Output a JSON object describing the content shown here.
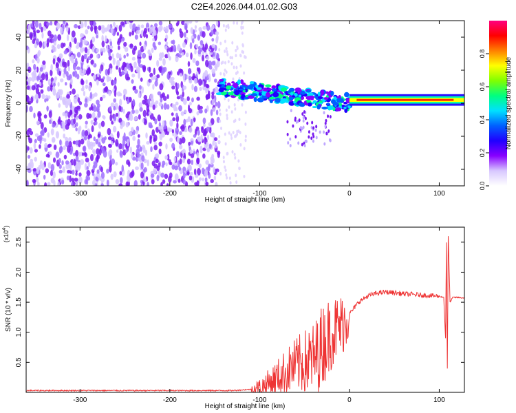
{
  "title": "C2E4.2026.044.01.02.G03",
  "chart_data": [
    {
      "type": "heatmap",
      "xlabel": "Height of straight line (km)",
      "ylabel": "Frequency (Hz)",
      "xlim": [
        -360,
        128
      ],
      "ylim": [
        -50,
        50
      ],
      "xticks": [
        -300,
        -200,
        -100,
        0,
        100
      ],
      "yticks": [
        -40,
        -20,
        0,
        20,
        40
      ],
      "colorbar": {
        "label": "Normalized spectral amplitude",
        "range": [
          0,
          1
        ],
        "ticks": [
          "0.0",
          "0.2",
          "0.4",
          "0.6",
          "0.8"
        ],
        "colors": [
          "#ffffff",
          "#d8c8ff",
          "#8800ff",
          "#2000ff",
          "#0060ff",
          "#00e0ff",
          "#00ff80",
          "#80ff00",
          "#ffff00",
          "#ff8000",
          "#ff0000",
          "#ff0080"
        ]
      },
      "regions": [
        {
          "name": "noise",
          "x_range": [
            -360,
            -145
          ],
          "f_range": [
            -50,
            50
          ],
          "amplitude": 0.08
        },
        {
          "name": "transition",
          "x_range": [
            -145,
            -115
          ],
          "f_range": [
            -50,
            50
          ],
          "amplitude": 0.03
        },
        {
          "name": "signal-onset",
          "x_range": [
            -145,
            0
          ],
          "f_center": [
            10,
            0
          ],
          "amplitude": 0.35
        },
        {
          "name": "carrier",
          "x_range": [
            0,
            128
          ],
          "f_center": 2,
          "amplitude": 1.0
        }
      ]
    },
    {
      "type": "line",
      "xlabel": "Height of straight line (km)",
      "ylabel": "SNR (10 * v/v)",
      "ylabel_multiplier": "(x10",
      "ylabel_exponent": "4",
      "xlim": [
        -360,
        128
      ],
      "ylim": [
        0,
        2.75
      ],
      "xticks": [
        -300,
        -200,
        -100,
        0,
        100
      ],
      "yticks": [
        "0.5",
        "1.0",
        "1.5",
        "2.0",
        "2.5"
      ],
      "series": [
        {
          "name": "SNR",
          "color": "#ee3333",
          "x": [
            -360,
            -300,
            -200,
            -130,
            -110,
            -100,
            -90,
            -80,
            -70,
            -60,
            -50,
            -40,
            -35,
            -30,
            -25,
            -20,
            -15,
            -10,
            -5,
            0,
            10,
            20,
            30,
            40,
            50,
            60,
            70,
            80,
            90,
            100,
            105,
            107,
            108,
            109,
            110,
            112,
            115,
            120,
            128
          ],
          "values": [
            0.03,
            0.03,
            0.03,
            0.03,
            0.05,
            0.08,
            0.15,
            0.25,
            0.35,
            0.45,
            0.5,
            0.55,
            0.65,
            0.8,
            0.9,
            1.0,
            1.05,
            1.1,
            1.2,
            1.3,
            1.5,
            1.6,
            1.65,
            1.67,
            1.66,
            1.64,
            1.63,
            1.62,
            1.61,
            1.6,
            1.58,
            0.9,
            2.5,
            0.4,
            2.6,
            1.5,
            1.58,
            1.58,
            1.57
          ]
        }
      ]
    }
  ]
}
